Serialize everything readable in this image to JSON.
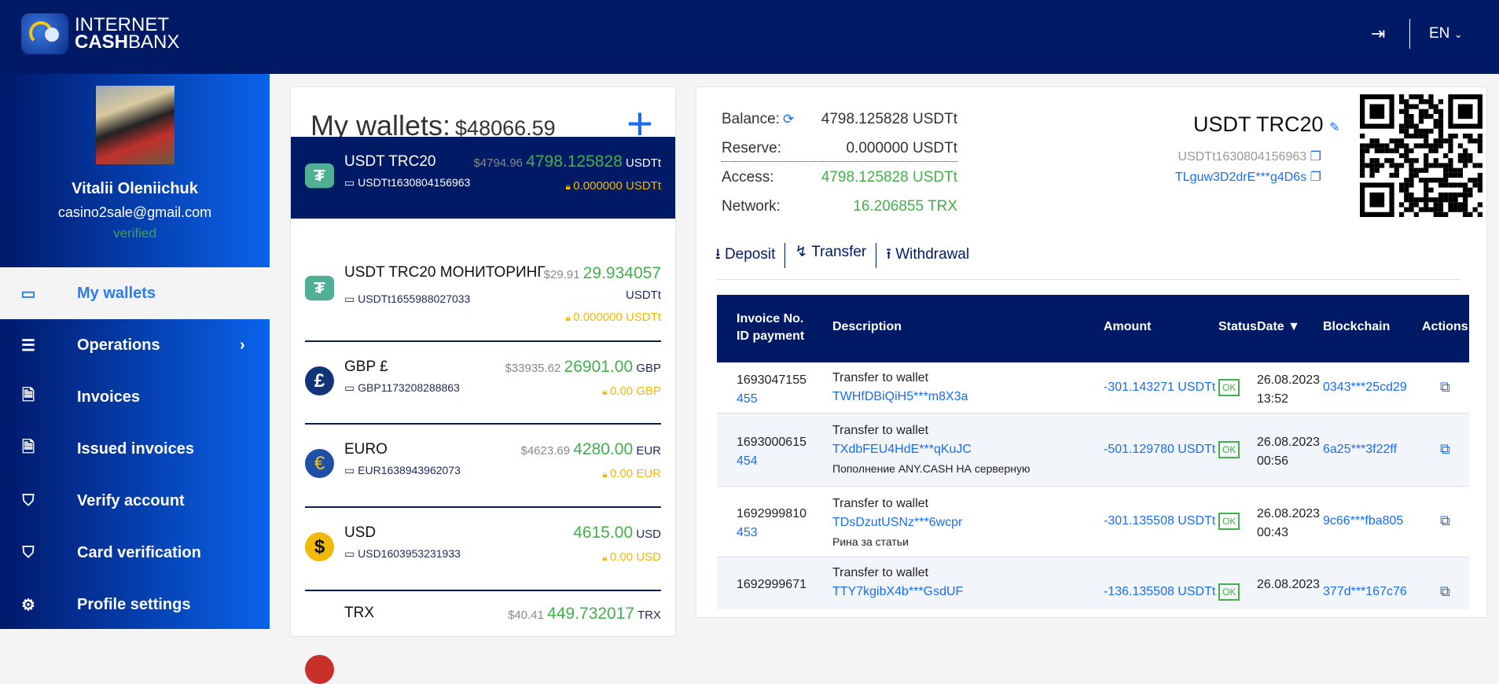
{
  "header": {
    "logo_line1": "INTERNET",
    "logo_line2_bold": "CASH",
    "logo_line2": "BANX",
    "lang": "EN"
  },
  "profile": {
    "name": "Vitalii Oleniichuk",
    "email": "casino2sale@gmail.com",
    "status": "verified"
  },
  "menu": [
    {
      "label": "My wallets",
      "icon": "wallet-icon",
      "active": true
    },
    {
      "label": "Operations",
      "icon": "list-icon",
      "submenu": true
    },
    {
      "label": "Invoices",
      "icon": "document-icon"
    },
    {
      "label": "Issued invoices",
      "icon": "document-icon"
    },
    {
      "label": "Verify account",
      "icon": "shield-icon"
    },
    {
      "label": "Card verification",
      "icon": "shield-icon"
    },
    {
      "label": "Profile settings",
      "icon": "gears-icon"
    }
  ],
  "wallets": {
    "title": "My wallets:",
    "total": "$48066.59",
    "items": [
      {
        "name": "USDT TRC20",
        "account": "USDTt1630804156963",
        "usd": "$4794.96",
        "amount": "4798.125828",
        "currency": "USDTt",
        "reserve": "0.000000 USDTt",
        "icon": "tether-icon",
        "color": "#50af95",
        "glyph": "₮"
      },
      {
        "name": "USDT TRC20 МОНИТОРИНГ",
        "account": "USDTt1655988027033",
        "usd": "$29.91",
        "amount": "29.934057",
        "currency": "USDTt",
        "reserve": "0.000000 USDTt",
        "icon": "tether-icon",
        "color": "#50af95",
        "glyph": "₮"
      },
      {
        "name": "GBP £",
        "account": "GBP1173208288863",
        "usd": "$33935.62",
        "amount": "26901.00",
        "currency": "GBP",
        "reserve": "0.00 GBP",
        "icon": "pound-icon",
        "color": "#12357a",
        "glyph": "£"
      },
      {
        "name": "EURO",
        "account": "EUR1638943962073",
        "usd": "$4623.69",
        "amount": "4280.00",
        "currency": "EUR",
        "reserve": "0.00 EUR",
        "icon": "euro-icon",
        "color": "#1f4fa8",
        "glyph": "€"
      },
      {
        "name": "USD",
        "account": "USD1603953231933",
        "usd": "",
        "amount": "4615.00",
        "currency": "USD",
        "reserve": "0.00 USD",
        "icon": "dollar-icon",
        "color": "#f0b90b",
        "glyph": "$"
      },
      {
        "name": "TRX",
        "account": "",
        "usd": "$40.41",
        "amount": "449.732017",
        "currency": "TRX",
        "reserve": "",
        "icon": "tron-icon",
        "color": "#c8312a",
        "glyph": ""
      }
    ]
  },
  "detail": {
    "balance_label": "Balance:",
    "balance": "4798.125828 USDTt",
    "reserve_label": "Reserve:",
    "reserve": "0.000000 USDTt",
    "access_label": "Access:",
    "access": "4798.125828 USDTt",
    "network_label": "Network:",
    "network": "16.206855 TRX",
    "title": "USDT TRC20",
    "account": "USDTt1630804156963",
    "address": "TLguw3D2drE***g4D6s",
    "actions": [
      "Deposit",
      "Transfer",
      "Withdrawal"
    ]
  },
  "table": {
    "headers": {
      "invoice1": "Invoice No.",
      "invoice2": "ID payment",
      "description": "Description",
      "amount": "Amount",
      "status": "Status",
      "date": "Date",
      "blockchain": "Blockchain",
      "actions": "Actions"
    },
    "rows": [
      {
        "invoice": "1693047155",
        "id": "455",
        "desc": "Transfer to wallet",
        "wallet": "TWHfDBiQiH5***m8X3a",
        "note": "",
        "amount": "-301.143271 USDTt",
        "status": "OK",
        "date": "26.08.2023",
        "time": "13:52",
        "chain": "0343***25cd29"
      },
      {
        "invoice": "1693000615",
        "id": "454",
        "desc": "Transfer to wallet",
        "wallet": "TXdbFEU4HdE***qKuJC",
        "note": "Пополнение ANY.CASH НА серверную",
        "amount": "-501.129780 USDTt",
        "status": "OK",
        "date": "26.08.2023",
        "time": "00:56",
        "chain": "6a25***3f22ff"
      },
      {
        "invoice": "1692999810",
        "id": "453",
        "desc": "Transfer to wallet",
        "wallet": "TDsDzutUSNz***6wcpr",
        "note": "Рина за статьи",
        "amount": "-301.135508 USDTt",
        "status": "OK",
        "date": "26.08.2023",
        "time": "00:43",
        "chain": "9c66***fba805"
      },
      {
        "invoice": "1692999671",
        "id": "",
        "desc": "Transfer to wallet",
        "wallet": "TTY7kgibX4b***GsdUF",
        "note": "",
        "amount": "-136.135508 USDTt",
        "status": "OK",
        "date": "26.08.2023",
        "time": "",
        "chain": "377d***167c76"
      }
    ]
  },
  "colors": {
    "navy": "#001a66",
    "accent": "#1a6cf2",
    "green": "#43b049",
    "reserve": "#f5b800"
  }
}
